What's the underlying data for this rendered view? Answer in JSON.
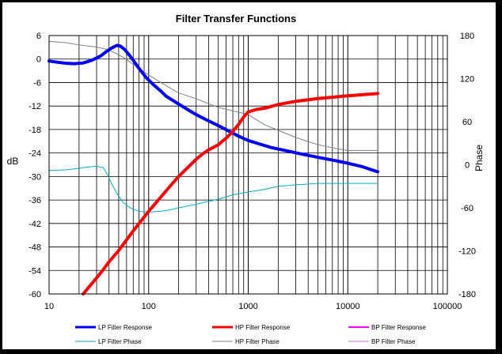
{
  "chart_data": {
    "type": "line",
    "title": "Filter Transfer  Functions",
    "xscale": "log",
    "xlim": [
      10,
      100000
    ],
    "x_ticks": [
      "10",
      "100",
      "1000",
      "10000",
      "100000"
    ],
    "ylabel_left": "dB",
    "ylim_left": [
      -60,
      6
    ],
    "y_ticks_left": [
      "6",
      "0",
      "-6",
      "-12",
      "-18",
      "-24",
      "-30",
      "-36",
      "-42",
      "-48",
      "-54",
      "-60"
    ],
    "ylabel_right": "Phase",
    "ylim_right": [
      -180,
      180
    ],
    "y_ticks_right": [
      "180",
      "120",
      "60",
      "0",
      "-60",
      "-120",
      "-180"
    ],
    "grid": true,
    "legend_position": "bottom",
    "series": [
      {
        "name": "LP Filter Response",
        "axis": "left",
        "color": "#0000ff",
        "width": 4,
        "points": [
          [
            10,
            -0.5
          ],
          [
            12,
            -0.8
          ],
          [
            15,
            -1.1
          ],
          [
            18,
            -1.2
          ],
          [
            22,
            -1.0
          ],
          [
            27,
            -0.3
          ],
          [
            33,
            0.8
          ],
          [
            38,
            2.0
          ],
          [
            43,
            2.9
          ],
          [
            48,
            3.5
          ],
          [
            52,
            3.3
          ],
          [
            57,
            2.5
          ],
          [
            63,
            1.2
          ],
          [
            70,
            -0.3
          ],
          [
            80,
            -2.4
          ],
          [
            95,
            -4.8
          ],
          [
            110,
            -6.4
          ],
          [
            130,
            -8.0
          ],
          [
            150,
            -9.5
          ],
          [
            200,
            -11.5
          ],
          [
            250,
            -13.0
          ],
          [
            300,
            -14.2
          ],
          [
            400,
            -15.8
          ],
          [
            500,
            -17.0
          ],
          [
            650,
            -18.5
          ],
          [
            800,
            -19.7
          ],
          [
            1000,
            -20.8
          ],
          [
            1300,
            -21.7
          ],
          [
            1700,
            -22.6
          ],
          [
            2500,
            -23.5
          ],
          [
            3500,
            -24.3
          ],
          [
            5000,
            -25.1
          ],
          [
            7000,
            -25.8
          ],
          [
            10000,
            -26.6
          ],
          [
            14000,
            -27.5
          ],
          [
            20000,
            -28.8
          ]
        ]
      },
      {
        "name": "HP Filter Response",
        "axis": "left",
        "color": "#ff0000",
        "width": 4,
        "points": [
          [
            22,
            -60.0
          ],
          [
            25,
            -58.3
          ],
          [
            30,
            -55.9
          ],
          [
            35,
            -53.8
          ],
          [
            40,
            -51.8
          ],
          [
            50,
            -48.9
          ],
          [
            60,
            -46.2
          ],
          [
            70,
            -43.9
          ],
          [
            80,
            -42.0
          ],
          [
            100,
            -38.9
          ],
          [
            130,
            -35.5
          ],
          [
            160,
            -32.8
          ],
          [
            200,
            -30.0
          ],
          [
            250,
            -27.6
          ],
          [
            300,
            -25.6
          ],
          [
            350,
            -24.2
          ],
          [
            400,
            -23.2
          ],
          [
            500,
            -21.9
          ],
          [
            600,
            -20.2
          ],
          [
            700,
            -18.5
          ],
          [
            800,
            -16.7
          ],
          [
            900,
            -14.8
          ],
          [
            1000,
            -13.5
          ],
          [
            1200,
            -12.9
          ],
          [
            1500,
            -12.5
          ],
          [
            2000,
            -11.6
          ],
          [
            3000,
            -10.8
          ],
          [
            5000,
            -10.1
          ],
          [
            10000,
            -9.4
          ],
          [
            20000,
            -8.8
          ]
        ]
      },
      {
        "name": "BP Filter Response",
        "axis": "left",
        "color": "#ff00ff",
        "width": 1,
        "points": []
      },
      {
        "name": "LP Filter Phase",
        "axis": "right",
        "color": "#00b0c8",
        "width": 1,
        "points": [
          [
            10,
            -8
          ],
          [
            15,
            -7
          ],
          [
            20,
            -5
          ],
          [
            25,
            -3
          ],
          [
            30,
            -2
          ],
          [
            35,
            -4
          ],
          [
            38,
            -12
          ],
          [
            42,
            -25
          ],
          [
            48,
            -40
          ],
          [
            55,
            -52
          ],
          [
            65,
            -60
          ],
          [
            80,
            -65
          ],
          [
            100,
            -66
          ],
          [
            150,
            -64
          ],
          [
            200,
            -60
          ],
          [
            300,
            -55
          ],
          [
            500,
            -48
          ],
          [
            700,
            -42
          ],
          [
            1000,
            -38
          ],
          [
            1500,
            -34
          ],
          [
            2000,
            -30
          ],
          [
            3000,
            -28
          ],
          [
            5000,
            -26
          ],
          [
            10000,
            -26
          ],
          [
            20000,
            -26
          ]
        ]
      },
      {
        "name": "HP Filter Phase",
        "axis": "right",
        "color": "#808080",
        "width": 1,
        "points": [
          [
            10,
            172
          ],
          [
            15,
            170
          ],
          [
            20,
            167
          ],
          [
            30,
            164
          ],
          [
            40,
            160
          ],
          [
            55,
            150
          ],
          [
            70,
            140
          ],
          [
            100,
            125
          ],
          [
            150,
            110
          ],
          [
            200,
            100
          ],
          [
            300,
            92
          ],
          [
            400,
            85
          ],
          [
            500,
            80
          ],
          [
            700,
            75
          ],
          [
            1000,
            70
          ],
          [
            1200,
            63
          ],
          [
            1500,
            55
          ],
          [
            2000,
            48
          ],
          [
            3000,
            38
          ],
          [
            5000,
            28
          ],
          [
            8000,
            22
          ],
          [
            10000,
            20
          ],
          [
            15000,
            20
          ],
          [
            20000,
            20
          ]
        ]
      },
      {
        "name": "BP Filter Phase",
        "axis": "right",
        "color": "#c080c0",
        "width": 1,
        "points": []
      }
    ]
  }
}
